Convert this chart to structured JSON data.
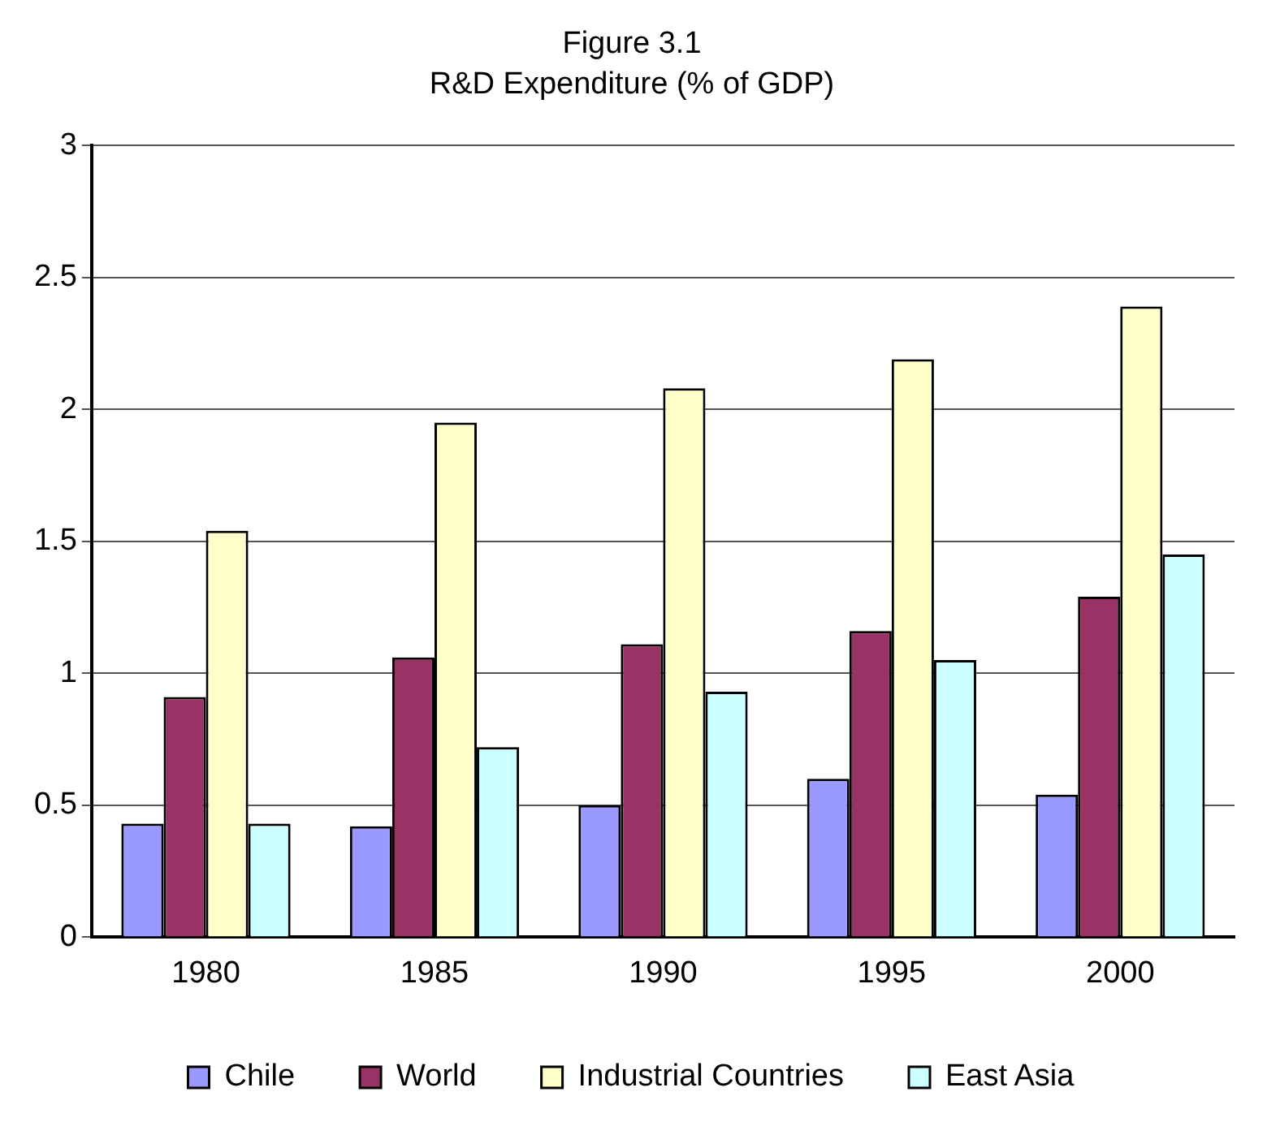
{
  "chart_data": {
    "type": "bar",
    "title": "Figure 3.1",
    "subtitle": "R&D Expenditure (% of GDP)",
    "categories": [
      "1980",
      "1985",
      "1990",
      "1995",
      "2000"
    ],
    "series": [
      {
        "name": "Chile",
        "color": "#9999ff",
        "values": [
          0.43,
          0.42,
          0.5,
          0.6,
          0.54
        ]
      },
      {
        "name": "World",
        "color": "#993366",
        "values": [
          0.91,
          1.06,
          1.11,
          1.16,
          1.29
        ]
      },
      {
        "name": "Industrial Countries",
        "color": "#ffffcc",
        "values": [
          1.54,
          1.95,
          2.08,
          2.19,
          2.39
        ]
      },
      {
        "name": "East Asia",
        "color": "#ccffff",
        "values": [
          0.43,
          0.72,
          0.93,
          1.05,
          1.45
        ]
      }
    ],
    "ylim": [
      0,
      3
    ],
    "yticks": [
      0,
      0.5,
      1,
      1.5,
      2,
      2.5,
      3
    ],
    "grid": "y",
    "legend": "bottom"
  }
}
